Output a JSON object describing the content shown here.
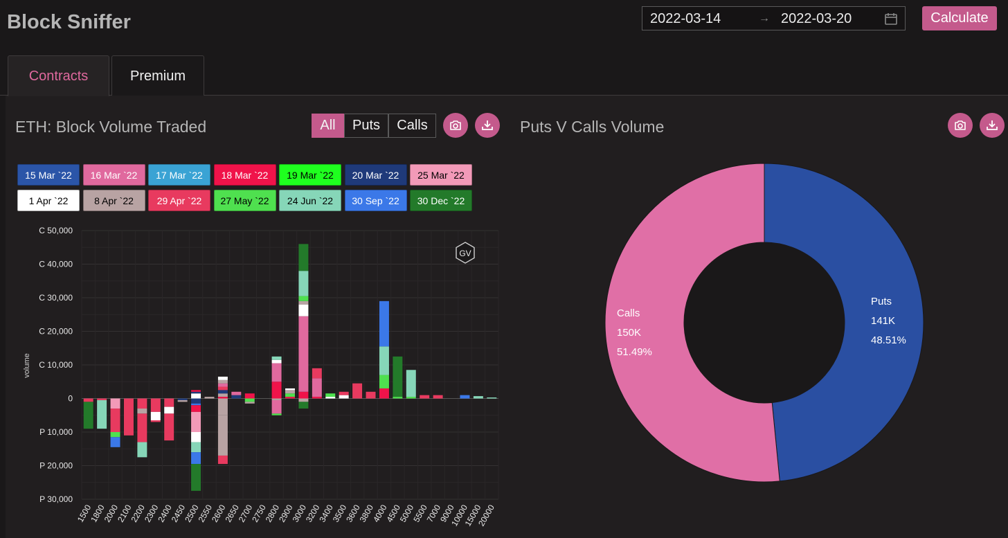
{
  "app": {
    "title": "Block Sniffer"
  },
  "date_range": {
    "start": "2022-03-14",
    "separator": "→",
    "end": "2022-03-20"
  },
  "calculate_label": "Calculate",
  "tabs": [
    {
      "label": "Contracts",
      "active": true
    },
    {
      "label": "Premium",
      "active": false
    }
  ],
  "filter": {
    "options": [
      "All",
      "Puts",
      "Calls"
    ],
    "selected": "All"
  },
  "colors": {
    "accent": "#c45a8c",
    "background": "#1a1819",
    "panel": "#211e1f"
  },
  "chart_data": [
    {
      "type": "bar",
      "stacked": true,
      "title": "ETH: Block Volume Traded",
      "ylabel": "volume",
      "ylim": [
        -30000,
        50000
      ],
      "yticks": [
        {
          "value": 50000,
          "label": "C 50,000"
        },
        {
          "value": 40000,
          "label": "C 40,000"
        },
        {
          "value": 30000,
          "label": "C 30,000"
        },
        {
          "value": 20000,
          "label": "C 20,000"
        },
        {
          "value": 10000,
          "label": "C 10,000"
        },
        {
          "value": 0,
          "label": "0"
        },
        {
          "value": -10000,
          "label": "P 10,000"
        },
        {
          "value": -20000,
          "label": "P 20,000"
        },
        {
          "value": -30000,
          "label": "P 30,000"
        }
      ],
      "grid": true,
      "legend_position": "top",
      "watermark": "GV",
      "categories": [
        "1500",
        "1800",
        "2000",
        "2100",
        "2200",
        "2300",
        "2400",
        "2450",
        "2500",
        "2550",
        "2600",
        "2650",
        "2700",
        "2750",
        "2800",
        "2900",
        "3000",
        "3200",
        "3400",
        "3500",
        "3600",
        "3800",
        "4000",
        "4500",
        "5000",
        "5500",
        "7000",
        "9000",
        "10000",
        "15000",
        "20000"
      ],
      "series": [
        {
          "name": "15 Mar `22",
          "color": "#2b55a8"
        },
        {
          "name": "16 Mar `22",
          "color": "#e0699e"
        },
        {
          "name": "17 Mar `22",
          "color": "#3aa3d4"
        },
        {
          "name": "18 Mar `22",
          "color": "#f0134a"
        },
        {
          "name": "19 Mar `22",
          "color": "#1fff1f"
        },
        {
          "name": "20 Mar `22",
          "color": "#1f3a7a"
        },
        {
          "name": "25 Mar `22",
          "color": "#f29ab8"
        },
        {
          "name": "1 Apr `22",
          "color": "#ffffff"
        },
        {
          "name": "8 Apr `22",
          "color": "#b8a3a3"
        },
        {
          "name": "29 Apr `22",
          "color": "#e83a5f"
        },
        {
          "name": "27 May `22",
          "color": "#4fe04f"
        },
        {
          "name": "24 Jun `22",
          "color": "#86d6b8"
        },
        {
          "name": "30 Sep `22",
          "color": "#3b78e8"
        },
        {
          "name": "30 Dec `22",
          "color": "#237a2a"
        }
      ],
      "stacks": [
        {
          "call": [],
          "put": [
            [
              "29 Apr `22",
              1000
            ],
            [
              "30 Dec `22",
              8000
            ]
          ]
        },
        {
          "call": [],
          "put": [
            [
              "29 Apr `22",
              500
            ],
            [
              "24 Jun `22",
              8500
            ]
          ]
        },
        {
          "call": [],
          "put": [
            [
              "25 Mar `22",
              3000
            ],
            [
              "29 Apr `22",
              7000
            ],
            [
              "27 May `22",
              1500
            ],
            [
              "30 Sep `22",
              3000
            ]
          ]
        },
        {
          "call": [],
          "put": [
            [
              "29 Apr `22",
              11000
            ]
          ]
        },
        {
          "call": [],
          "put": [
            [
              "29 Apr `22",
              3000
            ],
            [
              "8 Apr `22",
              1500
            ],
            [
              "29 Apr `22",
              8500
            ],
            [
              "24 Jun `22",
              4500
            ]
          ]
        },
        {
          "call": [],
          "put": [
            [
              "29 Apr `22",
              4000
            ],
            [
              "1 Apr `22",
              2500
            ],
            [
              "29 Apr `22",
              500
            ]
          ]
        },
        {
          "call": [],
          "put": [
            [
              "29 Apr `22",
              2500
            ],
            [
              "1 Apr `22",
              2000
            ],
            [
              "29 Apr `22",
              8000
            ]
          ]
        },
        {
          "call": [],
          "put": [
            [
              "20 Mar `22",
              500
            ],
            [
              "8 Apr `22",
              500
            ]
          ]
        },
        {
          "call": [
            [
              "1 Apr `22",
              1500
            ],
            [
              "20 Mar `22",
              500
            ],
            [
              "18 Mar `22",
              500
            ]
          ],
          "put": [
            [
              "20 Mar `22",
              1500
            ],
            [
              "30 Sep `22",
              500
            ],
            [
              "18 Mar `22",
              2000
            ],
            [
              "25 Mar `22",
              6000
            ],
            [
              "1 Apr `22",
              3000
            ],
            [
              "24 Jun `22",
              3000
            ],
            [
              "30 Sep `22",
              3500
            ],
            [
              "30 Dec `22",
              8000
            ]
          ]
        },
        {
          "call": [
            [
              "8 Apr `22",
              500
            ]
          ],
          "put": []
        },
        {
          "call": [
            [
              "18 Mar `22",
              500
            ],
            [
              "8 Apr `22",
              1000
            ],
            [
              "20 Mar `22",
              1000
            ],
            [
              "29 Apr `22",
              1000
            ],
            [
              "16 Mar `22",
              1000
            ],
            [
              "8 Apr `22",
              1000
            ],
            [
              "1 Apr `22",
              1000
            ]
          ],
          "put": [
            [
              "8 Apr `22",
              5000
            ],
            [
              "8 Apr `22",
              12000
            ],
            [
              "29 Apr `22",
              2500
            ]
          ]
        },
        {
          "call": [
            [
              "20 Mar `22",
              1000
            ],
            [
              "16 Mar `22",
              1000
            ]
          ],
          "put": []
        },
        {
          "call": [
            [
              "18 Mar `22",
              1500
            ]
          ],
          "put": [
            [
              "27 May `22",
              1000
            ],
            [
              "8 Apr `22",
              500
            ]
          ]
        },
        {
          "call": [],
          "put": []
        },
        {
          "call": [
            [
              "18 Mar `22",
              5000
            ],
            [
              "16 Mar `22",
              5500
            ],
            [
              "1 Apr `22",
              1000
            ],
            [
              "24 Jun `22",
              1000
            ]
          ],
          "put": [
            [
              "8 Apr `22",
              500
            ],
            [
              "16 Mar `22",
              4000
            ],
            [
              "27 May `22",
              500
            ]
          ]
        },
        {
          "call": [
            [
              "18 Mar `22",
              500
            ],
            [
              "27 May `22",
              1000
            ],
            [
              "8 Apr `22",
              1000
            ],
            [
              "1 Apr `22",
              500
            ]
          ],
          "put": []
        },
        {
          "call": [
            [
              "18 Mar `22",
              2000
            ],
            [
              "16 Mar `22",
              22500
            ],
            [
              "1 Apr `22",
              3500
            ],
            [
              "8 Apr `22",
              1000
            ],
            [
              "27 May `22",
              1500
            ],
            [
              "24 Jun `22",
              7500
            ],
            [
              "30 Dec `22",
              8000
            ]
          ],
          "put": [
            [
              "8 Apr `22",
              1000
            ],
            [
              "30 Dec `22",
              2000
            ]
          ]
        },
        {
          "call": [
            [
              "18 Mar `22",
              500
            ],
            [
              "16 Mar `22",
              5500
            ],
            [
              "29 Apr `22",
              3000
            ]
          ],
          "put": []
        },
        {
          "call": [
            [
              "1 Apr `22",
              500
            ],
            [
              "27 May `22",
              1000
            ]
          ],
          "put": []
        },
        {
          "call": [
            [
              "1 Apr `22",
              1000
            ],
            [
              "29 Apr `22",
              1000
            ]
          ],
          "put": []
        },
        {
          "call": [
            [
              "29 Apr `22",
              4500
            ]
          ],
          "put": []
        },
        {
          "call": [
            [
              "29 Apr `22",
              2000
            ]
          ],
          "put": []
        },
        {
          "call": [
            [
              "18 Mar `22",
              3000
            ],
            [
              "27 May `22",
              4000
            ],
            [
              "24 Jun `22",
              8500
            ],
            [
              "30 Sep `22",
              13500
            ]
          ],
          "put": []
        },
        {
          "call": [
            [
              "27 May `22",
              500
            ],
            [
              "30 Dec `22",
              12000
            ]
          ],
          "put": []
        },
        {
          "call": [
            [
              "27 May `22",
              500
            ],
            [
              "24 Jun `22",
              8000
            ]
          ],
          "put": []
        },
        {
          "call": [
            [
              "29 Apr `22",
              1000
            ]
          ],
          "put": []
        },
        {
          "call": [
            [
              "29 Apr `22",
              1000
            ]
          ],
          "put": []
        },
        {
          "call": [],
          "put": []
        },
        {
          "call": [
            [
              "30 Sep `22",
              1000
            ]
          ],
          "put": []
        },
        {
          "call": [
            [
              "24 Jun `22",
              700
            ]
          ],
          "put": []
        },
        {
          "call": [
            [
              "24 Jun `22",
              300
            ]
          ],
          "put": []
        }
      ]
    },
    {
      "type": "pie",
      "title": "Puts V Calls Volume",
      "donut": true,
      "slices": [
        {
          "label": "Puts",
          "value_text": "141K",
          "value": 141000,
          "percent": 48.51,
          "percent_text": "48.51%",
          "color": "#2a4fa2"
        },
        {
          "label": "Calls",
          "value_text": "150K",
          "value": 150000,
          "percent": 51.49,
          "percent_text": "51.49%",
          "color": "#e06fa6"
        }
      ]
    }
  ]
}
